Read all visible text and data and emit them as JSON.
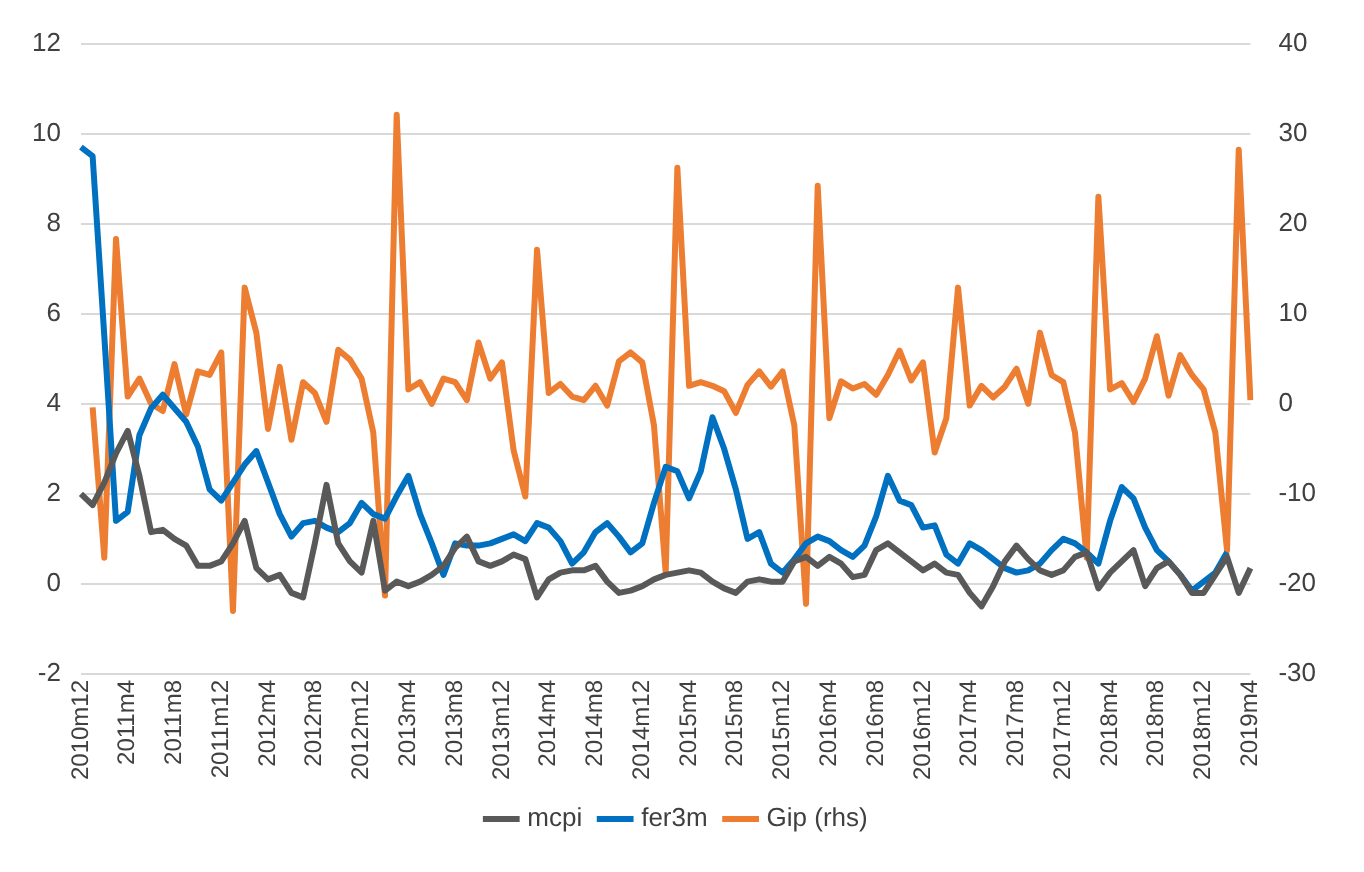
{
  "chart_data": {
    "type": "line",
    "categories": [
      "2010m12",
      null,
      null,
      null,
      "2011m4",
      null,
      null,
      null,
      "2011m8",
      null,
      null,
      null,
      "2011m12",
      null,
      null,
      null,
      "2012m4",
      null,
      null,
      null,
      "2012m8",
      null,
      null,
      null,
      "2012m12",
      null,
      null,
      null,
      "2013m4",
      null,
      null,
      null,
      "2013m8",
      null,
      null,
      null,
      "2013m12",
      null,
      null,
      null,
      "2014m4",
      null,
      null,
      null,
      "2014m8",
      null,
      null,
      null,
      "2014m12",
      null,
      null,
      null,
      "2015m4",
      null,
      null,
      null,
      "2015m8",
      null,
      null,
      null,
      "2015m12",
      null,
      null,
      null,
      "2016m4",
      null,
      null,
      null,
      "2016m8",
      null,
      null,
      null,
      "2016m12",
      null,
      null,
      null,
      "2017m4",
      null,
      null,
      null,
      "2017m8",
      null,
      null,
      null,
      "2017m12",
      null,
      null,
      null,
      "2018m4",
      null,
      null,
      null,
      "2018m8",
      null,
      null,
      null,
      "2018m12",
      null,
      null,
      null,
      "2019m4"
    ],
    "series": [
      {
        "name": "mcpi",
        "color": "#595959",
        "values": [
          2.0,
          1.75,
          2.25,
          2.9,
          3.4,
          2.4,
          1.15,
          1.2,
          1.0,
          0.85,
          0.4,
          0.4,
          0.5,
          0.9,
          1.4,
          0.35,
          0.1,
          0.2,
          -0.2,
          -0.3,
          0.9,
          2.2,
          0.9,
          0.5,
          0.25,
          1.4,
          -0.15,
          0.05,
          -0.05,
          0.05,
          0.2,
          0.4,
          0.8,
          1.05,
          0.5,
          0.4,
          0.5,
          0.65,
          0.55,
          -0.3,
          0.1,
          0.25,
          0.3,
          0.3,
          0.4,
          0.05,
          -0.2,
          -0.15,
          -0.05,
          0.1,
          0.2,
          0.25,
          0.3,
          0.25,
          0.05,
          -0.1,
          -0.2,
          0.05,
          0.1,
          0.05,
          0.05,
          0.5,
          0.6,
          0.4,
          0.6,
          0.45,
          0.15,
          0.2,
          0.75,
          0.9,
          0.7,
          0.5,
          0.3,
          0.45,
          0.25,
          0.2,
          -0.2,
          -0.5,
          -0.05,
          0.5,
          0.85,
          0.55,
          0.3,
          0.2,
          0.3,
          0.6,
          0.7,
          -0.1,
          0.25,
          0.5,
          0.75,
          -0.05,
          0.35,
          0.5,
          0.2,
          -0.2,
          -0.2,
          0.2,
          0.6,
          -0.2,
          0.35
        ]
      },
      {
        "name": "fer3m",
        "color": "#0070c0",
        "values": [
          9.7,
          9.5,
          5.5,
          1.4,
          1.6,
          3.3,
          3.9,
          4.2,
          3.9,
          3.6,
          3.05,
          2.1,
          1.85,
          2.25,
          2.65,
          2.95,
          2.25,
          1.55,
          1.05,
          1.35,
          1.4,
          1.25,
          1.15,
          1.35,
          1.8,
          1.55,
          1.45,
          1.95,
          2.4,
          1.55,
          0.9,
          0.2,
          0.9,
          0.85,
          0.85,
          0.9,
          1.0,
          1.1,
          0.95,
          1.35,
          1.25,
          0.95,
          0.45,
          0.7,
          1.15,
          1.35,
          1.05,
          0.7,
          0.9,
          1.8,
          2.6,
          2.5,
          1.9,
          2.5,
          3.7,
          3.0,
          2.1,
          1.0,
          1.15,
          0.45,
          0.25,
          0.55,
          0.9,
          1.05,
          0.95,
          0.75,
          0.6,
          0.85,
          1.5,
          2.4,
          1.85,
          1.75,
          1.25,
          1.3,
          0.65,
          0.45,
          0.9,
          0.75,
          0.55,
          0.35,
          0.25,
          0.3,
          0.45,
          0.75,
          1.0,
          0.9,
          0.7,
          0.45,
          1.4,
          2.15,
          1.9,
          1.25,
          0.75,
          0.5,
          0.2,
          -0.15,
          0.05,
          0.25,
          0.7,
          null,
          null
        ]
      },
      {
        "name": "Gip (rhs)",
        "color": "#ed7d31",
        "axis": "y2",
        "values": [
          null,
          -0.4,
          -17.1,
          18.3,
          0.8,
          2.8,
          0,
          -0.8,
          4.4,
          -1.2,
          3.6,
          3.2,
          5.7,
          -23.0,
          12.9,
          7.9,
          -2.8,
          4.1,
          -4.0,
          2.4,
          1.2,
          -2.0,
          6.0,
          4.9,
          2.8,
          -3.2,
          -21.3,
          32.1,
          1.6,
          2.4,
          0,
          2.8,
          2.4,
          0.4,
          6.8,
          2.8,
          4.6,
          -5.2,
          -10.3,
          17.1,
          1.2,
          2.2,
          0.8,
          0.4,
          2.0,
          -0.2,
          4.7,
          5.7,
          4.6,
          -2.4,
          -18.7,
          26.2,
          2.0,
          2.4,
          2.0,
          1.4,
          -1.0,
          2.1,
          3.6,
          1.9,
          3.6,
          -2.4,
          -22.2,
          24.2,
          -1.6,
          2.5,
          1.7,
          2.2,
          1.0,
          3.2,
          5.9,
          2.6,
          4.6,
          -5.4,
          -1.6,
          12.9,
          -0.2,
          2.0,
          0.7,
          1.9,
          3.9,
          0,
          7.9,
          3.2,
          2.4,
          -3.2,
          -17.1,
          23.0,
          1.6,
          2.3,
          0.2,
          2.8,
          7.5,
          0.9,
          5.4,
          3.2,
          1.6,
          -3.2,
          -16.3,
          28.2,
          0.4
        ]
      }
    ],
    "ylim": [
      -2,
      12
    ],
    "yticks": [
      -2,
      0,
      2,
      4,
      6,
      8,
      10,
      12
    ],
    "y2lim": [
      -30,
      40
    ],
    "y2ticks": [
      -30,
      -20,
      -10,
      0,
      10,
      20,
      30,
      40
    ],
    "grid": "y",
    "legend": "bottom",
    "marker": "none"
  }
}
